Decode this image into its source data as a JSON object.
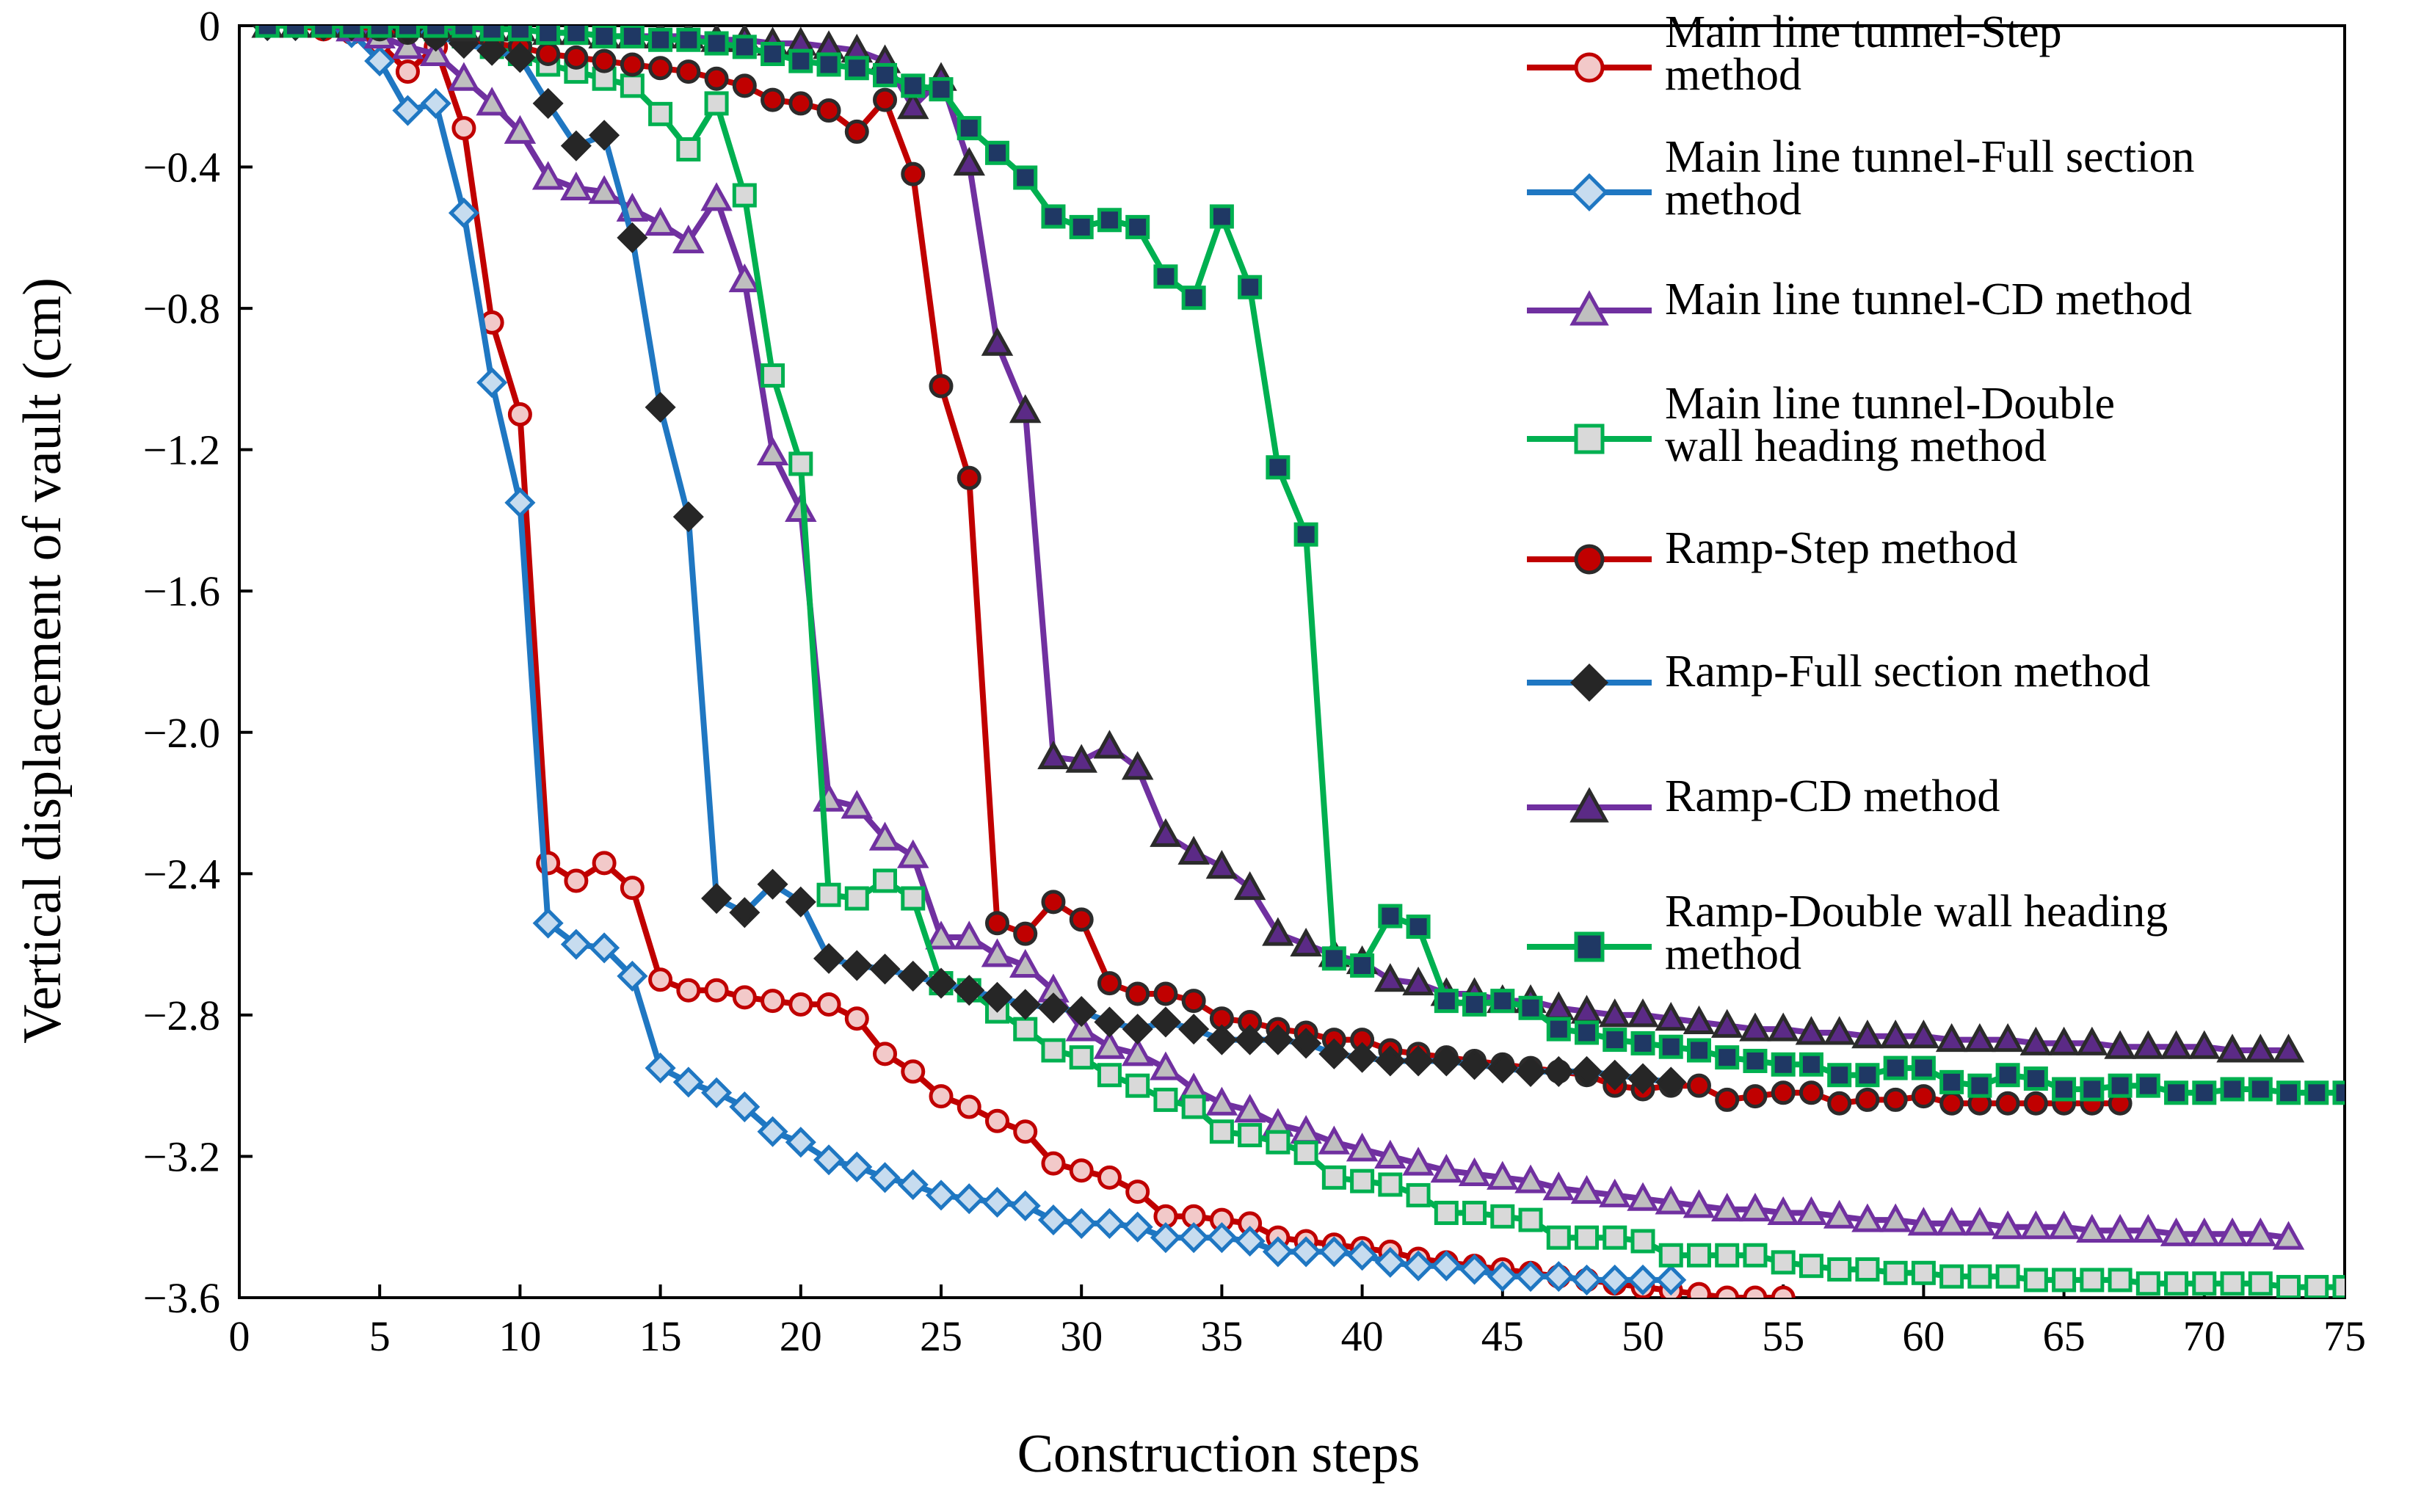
{
  "chart_data": {
    "type": "line",
    "xlabel": "Construction steps",
    "ylabel": "Vertical displacement of vault (cm)",
    "xlim": [
      0,
      75
    ],
    "ylim": [
      -3.6,
      0
    ],
    "xticks": [
      0,
      5,
      10,
      15,
      20,
      25,
      30,
      35,
      40,
      45,
      50,
      55,
      60,
      65,
      70,
      75
    ],
    "yticks": [
      0,
      -0.4,
      -0.8,
      -1.2,
      -1.6,
      -2.0,
      -2.4,
      -2.8,
      -3.2,
      -3.6
    ],
    "xtick_labels": [
      "0",
      "5",
      "10",
      "15",
      "20",
      "25",
      "30",
      "35",
      "40",
      "45",
      "50",
      "55",
      "60",
      "65",
      "70",
      "75"
    ],
    "ytick_labels": [
      "0",
      "−0.4",
      "−0.8",
      "−1.2",
      "−1.6",
      "−2.0",
      "−2.4",
      "−2.8",
      "−3.2",
      "−3.6"
    ],
    "grid": false,
    "legend_position": "top-right",
    "series": [
      {
        "name": "Main line tunnel-Step method",
        "legend_lines": [
          "Main line tunnel-Step",
          "method"
        ],
        "color": "#c00000",
        "marker": "circle",
        "fill": "#f2c9c9",
        "stroke": "#c00000",
        "x": [
          1,
          2,
          3,
          4,
          5,
          6,
          7,
          8,
          9,
          10,
          11,
          12,
          13,
          14,
          15,
          16,
          17,
          18,
          19,
          20,
          21,
          22,
          23,
          24,
          25,
          26,
          27,
          28,
          29,
          30,
          31,
          32,
          33,
          34,
          35,
          36,
          37,
          38,
          39,
          40,
          41,
          42,
          43,
          44,
          45,
          46,
          47,
          48,
          49,
          50,
          51,
          52,
          53,
          54,
          55
        ],
        "y": [
          0,
          0,
          -0.01,
          -0.02,
          -0.05,
          -0.13,
          -0.06,
          -0.29,
          -0.84,
          -1.1,
          -2.37,
          -2.42,
          -2.37,
          -2.44,
          -2.7,
          -2.73,
          -2.73,
          -2.75,
          -2.76,
          -2.77,
          -2.77,
          -2.81,
          -2.91,
          -2.96,
          -3.03,
          -3.06,
          -3.1,
          -3.13,
          -3.22,
          -3.24,
          -3.26,
          -3.3,
          -3.37,
          -3.37,
          -3.38,
          -3.39,
          -3.43,
          -3.44,
          -3.45,
          -3.46,
          -3.47,
          -3.49,
          -3.5,
          -3.51,
          -3.52,
          -3.53,
          -3.54,
          -3.55,
          -3.56,
          -3.57,
          -3.58,
          -3.59,
          -3.6,
          -3.6,
          -3.6
        ]
      },
      {
        "name": "Main line tunnel-Full section method",
        "legend_lines": [
          "Main line tunnel-Full section",
          "method"
        ],
        "color": "#1f77c2",
        "marker": "diamond",
        "fill": "#c7dcef",
        "stroke": "#1f77c2",
        "x": [
          1,
          2,
          3,
          4,
          5,
          6,
          7,
          8,
          9,
          10,
          11,
          12,
          13,
          14,
          15,
          16,
          17,
          18,
          19,
          20,
          21,
          22,
          23,
          24,
          25,
          26,
          27,
          28,
          29,
          30,
          31,
          32,
          33,
          34,
          35,
          36,
          37,
          38,
          39,
          40,
          41,
          42,
          43,
          44,
          45,
          46,
          47,
          48,
          49,
          50,
          51
        ],
        "y": [
          0,
          0,
          0,
          -0.02,
          -0.1,
          -0.24,
          -0.22,
          -0.53,
          -1.01,
          -1.35,
          -2.54,
          -2.6,
          -2.61,
          -2.69,
          -2.95,
          -2.99,
          -3.02,
          -3.06,
          -3.13,
          -3.16,
          -3.21,
          -3.23,
          -3.26,
          -3.28,
          -3.31,
          -3.32,
          -3.33,
          -3.34,
          -3.38,
          -3.39,
          -3.39,
          -3.4,
          -3.43,
          -3.43,
          -3.43,
          -3.44,
          -3.47,
          -3.47,
          -3.47,
          -3.48,
          -3.5,
          -3.51,
          -3.51,
          -3.52,
          -3.54,
          -3.54,
          -3.54,
          -3.55,
          -3.55,
          -3.55,
          -3.55
        ]
      },
      {
        "name": "Main line tunnel-CD method",
        "legend_lines": [
          "Main line tunnel-CD method"
        ],
        "color": "#7030a0",
        "marker": "triangle",
        "fill": "#bfbfbf",
        "stroke": "#7030a0",
        "x": [
          1,
          2,
          3,
          4,
          5,
          6,
          7,
          8,
          9,
          10,
          11,
          12,
          13,
          14,
          15,
          16,
          17,
          18,
          19,
          20,
          21,
          22,
          23,
          24,
          25,
          26,
          27,
          28,
          29,
          30,
          31,
          32,
          33,
          34,
          35,
          36,
          37,
          38,
          39,
          40,
          41,
          42,
          43,
          44,
          45,
          46,
          47,
          48,
          49,
          50,
          51,
          52,
          53,
          54,
          55,
          56,
          57,
          58,
          59,
          60,
          61,
          62,
          63,
          64,
          65,
          66,
          67,
          68,
          69,
          70,
          71,
          72,
          73
        ],
        "y": [
          0,
          0,
          0,
          -0.01,
          -0.03,
          -0.06,
          -0.08,
          -0.15,
          -0.22,
          -0.3,
          -0.43,
          -0.46,
          -0.47,
          -0.52,
          -0.56,
          -0.61,
          -0.49,
          -0.72,
          -1.21,
          -1.37,
          -2.19,
          -2.21,
          -2.3,
          -2.35,
          -2.58,
          -2.58,
          -2.63,
          -2.66,
          -2.73,
          -2.84,
          -2.89,
          -2.91,
          -2.95,
          -3.01,
          -3.05,
          -3.07,
          -3.11,
          -3.13,
          -3.16,
          -3.18,
          -3.2,
          -3.22,
          -3.24,
          -3.25,
          -3.26,
          -3.27,
          -3.29,
          -3.3,
          -3.31,
          -3.32,
          -3.33,
          -3.34,
          -3.35,
          -3.35,
          -3.36,
          -3.36,
          -3.37,
          -3.38,
          -3.38,
          -3.39,
          -3.39,
          -3.39,
          -3.4,
          -3.4,
          -3.4,
          -3.41,
          -3.41,
          -3.41,
          -3.42,
          -3.42,
          -3.42,
          -3.42,
          -3.43
        ]
      },
      {
        "name": "Main line tunnel-Double wall heading method",
        "legend_lines": [
          "Main line tunnel-Double",
          "wall heading method"
        ],
        "color": "#00b050",
        "marker": "square",
        "fill": "#d9d9d9",
        "stroke": "#00b050",
        "x": [
          1,
          2,
          3,
          4,
          5,
          6,
          7,
          8,
          9,
          10,
          11,
          12,
          13,
          14,
          15,
          16,
          17,
          18,
          19,
          20,
          21,
          22,
          23,
          24,
          25,
          26,
          27,
          28,
          29,
          30,
          31,
          32,
          33,
          34,
          35,
          36,
          37,
          38,
          39,
          40,
          41,
          42,
          43,
          44,
          45,
          46,
          47,
          48,
          49,
          50,
          51,
          52,
          53,
          54,
          55,
          56,
          57,
          58,
          59,
          60,
          61,
          62,
          63,
          64,
          65,
          66,
          67,
          68,
          69,
          70,
          71,
          72,
          73,
          74,
          75
        ],
        "y": [
          0,
          0,
          0,
          0,
          0,
          0,
          -0.01,
          -0.03,
          -0.06,
          -0.08,
          -0.11,
          -0.13,
          -0.15,
          -0.17,
          -0.25,
          -0.35,
          -0.22,
          -0.48,
          -0.99,
          -1.24,
          -2.46,
          -2.47,
          -2.42,
          -2.47,
          -2.71,
          -2.73,
          -2.79,
          -2.84,
          -2.9,
          -2.92,
          -2.97,
          -3.0,
          -3.04,
          -3.06,
          -3.13,
          -3.14,
          -3.16,
          -3.19,
          -3.26,
          -3.27,
          -3.28,
          -3.31,
          -3.36,
          -3.36,
          -3.37,
          -3.38,
          -3.43,
          -3.43,
          -3.43,
          -3.44,
          -3.48,
          -3.48,
          -3.48,
          -3.48,
          -3.5,
          -3.51,
          -3.52,
          -3.52,
          -3.53,
          -3.53,
          -3.54,
          -3.54,
          -3.54,
          -3.55,
          -3.55,
          -3.55,
          -3.55,
          -3.56,
          -3.56,
          -3.56,
          -3.56,
          -3.56,
          -3.57,
          -3.57,
          -3.57
        ]
      },
      {
        "name": "Ramp-Step method",
        "legend_lines": [
          "Ramp-Step method"
        ],
        "color": "#c00000",
        "marker": "circle",
        "fill": "#c00000",
        "stroke": "#2b2b2b",
        "x": [
          1,
          2,
          3,
          4,
          5,
          6,
          7,
          8,
          9,
          10,
          11,
          12,
          13,
          14,
          15,
          16,
          17,
          18,
          19,
          20,
          21,
          22,
          23,
          24,
          25,
          26,
          27,
          28,
          29,
          30,
          31,
          32,
          33,
          34,
          35,
          36,
          37,
          38,
          39,
          40,
          41,
          42,
          43,
          44,
          45,
          46,
          47,
          48,
          49,
          50,
          51,
          52,
          53,
          54,
          55,
          56,
          57,
          58,
          59,
          60,
          61,
          62,
          63,
          64,
          65,
          66,
          67
        ],
        "y": [
          0,
          0,
          0,
          0,
          -0.01,
          -0.02,
          -0.03,
          -0.04,
          -0.05,
          -0.06,
          -0.08,
          -0.09,
          -0.1,
          -0.11,
          -0.12,
          -0.13,
          -0.15,
          -0.17,
          -0.21,
          -0.22,
          -0.24,
          -0.3,
          -0.21,
          -0.42,
          -1.02,
          -1.28,
          -2.54,
          -2.57,
          -2.48,
          -2.53,
          -2.71,
          -2.74,
          -2.74,
          -2.76,
          -2.81,
          -2.82,
          -2.84,
          -2.85,
          -2.87,
          -2.87,
          -2.9,
          -2.91,
          -2.92,
          -2.93,
          -2.94,
          -2.95,
          -2.96,
          -2.97,
          -3.0,
          -3.01,
          -3.0,
          -3.0,
          -3.04,
          -3.03,
          -3.02,
          -3.02,
          -3.05,
          -3.04,
          -3.04,
          -3.03,
          -3.05,
          -3.05,
          -3.05,
          -3.05,
          -3.05,
          -3.05,
          -3.05
        ]
      },
      {
        "name": "Ramp-Full section method",
        "legend_lines": [
          "Ramp-Full section method"
        ],
        "color": "#1f77c2",
        "marker": "diamond",
        "fill": "#262626",
        "stroke": "#262626",
        "x": [
          1,
          2,
          3,
          4,
          5,
          6,
          7,
          8,
          9,
          10,
          11,
          12,
          13,
          14,
          15,
          16,
          17,
          18,
          19,
          20,
          21,
          22,
          23,
          24,
          25,
          26,
          27,
          28,
          29,
          30,
          31,
          32,
          33,
          34,
          35,
          36,
          37,
          38,
          39,
          40,
          41,
          42,
          43,
          44,
          45,
          46,
          47,
          48,
          49,
          50,
          51
        ],
        "y": [
          0,
          0,
          0,
          0,
          0,
          -0.01,
          -0.03,
          -0.05,
          -0.07,
          -0.09,
          -0.22,
          -0.34,
          -0.31,
          -0.6,
          -1.08,
          -1.39,
          -2.47,
          -2.51,
          -2.43,
          -2.48,
          -2.64,
          -2.66,
          -2.67,
          -2.69,
          -2.71,
          -2.73,
          -2.75,
          -2.77,
          -2.78,
          -2.79,
          -2.82,
          -2.84,
          -2.82,
          -2.84,
          -2.87,
          -2.87,
          -2.87,
          -2.88,
          -2.91,
          -2.92,
          -2.93,
          -2.93,
          -2.93,
          -2.94,
          -2.95,
          -2.96,
          -2.96,
          -2.96,
          -2.97,
          -2.98,
          -2.99
        ]
      },
      {
        "name": "Ramp-CD method",
        "legend_lines": [
          "Ramp-CD method"
        ],
        "color": "#7030a0",
        "marker": "triangle",
        "fill": "#5b2a86",
        "stroke": "#2b2b2b",
        "x": [
          1,
          2,
          3,
          4,
          5,
          6,
          7,
          8,
          9,
          10,
          11,
          12,
          13,
          14,
          15,
          16,
          17,
          18,
          19,
          20,
          21,
          22,
          23,
          24,
          25,
          26,
          27,
          28,
          29,
          30,
          31,
          32,
          33,
          34,
          35,
          36,
          37,
          38,
          39,
          40,
          41,
          42,
          43,
          44,
          45,
          46,
          47,
          48,
          49,
          50,
          51,
          52,
          53,
          54,
          55,
          56,
          57,
          58,
          59,
          60,
          61,
          62,
          63,
          64,
          65,
          66,
          67,
          68,
          69,
          70,
          71,
          72,
          73
        ],
        "y": [
          0,
          0,
          0,
          0,
          0,
          0,
          0,
          -0.01,
          -0.01,
          -0.01,
          -0.02,
          -0.02,
          -0.03,
          -0.03,
          -0.03,
          -0.03,
          -0.04,
          -0.04,
          -0.05,
          -0.05,
          -0.06,
          -0.07,
          -0.1,
          -0.23,
          -0.15,
          -0.39,
          -0.9,
          -1.09,
          -2.07,
          -2.08,
          -2.04,
          -2.1,
          -2.29,
          -2.34,
          -2.38,
          -2.44,
          -2.57,
          -2.6,
          -2.63,
          -2.65,
          -2.7,
          -2.71,
          -2.74,
          -2.74,
          -2.76,
          -2.76,
          -2.78,
          -2.79,
          -2.8,
          -2.8,
          -2.81,
          -2.82,
          -2.83,
          -2.84,
          -2.84,
          -2.85,
          -2.85,
          -2.86,
          -2.86,
          -2.86,
          -2.87,
          -2.87,
          -2.87,
          -2.88,
          -2.88,
          -2.88,
          -2.89,
          -2.89,
          -2.89,
          -2.89,
          -2.9,
          -2.9,
          -2.9
        ]
      },
      {
        "name": "Ramp-Double wall heading method",
        "legend_lines": [
          "Ramp-Double wall heading",
          "method"
        ],
        "color": "#00b050",
        "marker": "square",
        "fill": "#1f3864",
        "stroke": "#00b050",
        "x": [
          1,
          2,
          3,
          4,
          5,
          6,
          7,
          8,
          9,
          10,
          11,
          12,
          13,
          14,
          15,
          16,
          17,
          18,
          19,
          20,
          21,
          22,
          23,
          24,
          25,
          26,
          27,
          28,
          29,
          30,
          31,
          32,
          33,
          34,
          35,
          36,
          37,
          38,
          39,
          40,
          41,
          42,
          43,
          44,
          45,
          46,
          47,
          48,
          49,
          50,
          51,
          52,
          53,
          54,
          55,
          56,
          57,
          58,
          59,
          60,
          61,
          62,
          63,
          64,
          65,
          66,
          67,
          68,
          69,
          70,
          71,
          72,
          73,
          74,
          75
        ],
        "y": [
          0,
          0,
          0,
          0,
          0,
          0,
          0,
          0,
          -0.01,
          -0.01,
          -0.02,
          -0.02,
          -0.03,
          -0.03,
          -0.04,
          -0.04,
          -0.05,
          -0.06,
          -0.08,
          -0.1,
          -0.11,
          -0.12,
          -0.14,
          -0.17,
          -0.18,
          -0.29,
          -0.36,
          -0.43,
          -0.54,
          -0.57,
          -0.55,
          -0.57,
          -0.71,
          -0.77,
          -0.54,
          -0.74,
          -1.25,
          -1.44,
          -2.64,
          -2.66,
          -2.52,
          -2.55,
          -2.76,
          -2.77,
          -2.76,
          -2.78,
          -2.84,
          -2.85,
          -2.87,
          -2.88,
          -2.89,
          -2.9,
          -2.92,
          -2.93,
          -2.94,
          -2.94,
          -2.97,
          -2.97,
          -2.95,
          -2.95,
          -2.99,
          -3.0,
          -2.97,
          -2.98,
          -3.01,
          -3.01,
          -3.0,
          -3.0,
          -3.02,
          -3.02,
          -3.01,
          -3.01,
          -3.02,
          -3.02,
          -3.02
        ]
      }
    ]
  }
}
